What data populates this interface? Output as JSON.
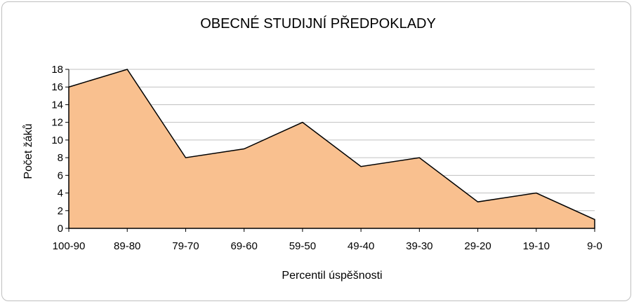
{
  "chart_data": {
    "type": "area",
    "title": "OBECNÉ STUDIJNÍ PŘEDPOKLADY",
    "xlabel": "Percentil úspěšnosti",
    "ylabel": "Počet žáků",
    "categories": [
      "100-90",
      "89-80",
      "79-70",
      "69-60",
      "59-50",
      "49-40",
      "39-30",
      "29-20",
      "19-10",
      "9-0"
    ],
    "values": [
      16,
      18,
      8,
      9,
      12,
      7,
      8,
      3,
      4,
      1
    ],
    "ylim": [
      0,
      18
    ],
    "yticks": [
      "0",
      "2",
      "4",
      "6",
      "8",
      "10",
      "12",
      "14",
      "16",
      "18"
    ],
    "grid": true,
    "legend": "none",
    "colors": {
      "fill": "#F9C08F",
      "line": "#000000",
      "grid": "#C0C0C0"
    }
  }
}
